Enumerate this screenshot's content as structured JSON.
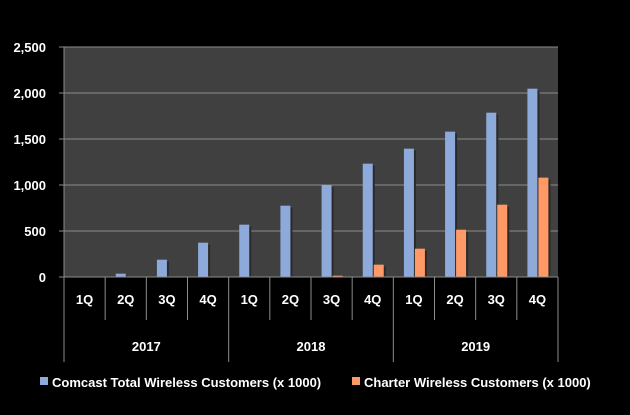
{
  "chart_data": {
    "type": "bar",
    "title": "",
    "xlabel": "",
    "ylabel": "",
    "ylim": [
      0,
      2500
    ],
    "yticks": [
      "0",
      "500",
      "1,000",
      "1,500",
      "2,000",
      "2,500"
    ],
    "grid": true,
    "legend_position": "bottom",
    "categories": [
      "1Q",
      "2Q",
      "3Q",
      "4Q",
      "1Q",
      "2Q",
      "3Q",
      "4Q",
      "1Q",
      "2Q",
      "3Q",
      "4Q"
    ],
    "groups": [
      {
        "label": "2017",
        "count": 4
      },
      {
        "label": "2018",
        "count": 4
      },
      {
        "label": "2019",
        "count": 4
      }
    ],
    "series": [
      {
        "name": "Comcast Total Wireless Customers (x 1000)",
        "color": "#8eaadb",
        "values": [
          0,
          36,
          188,
          373,
          569,
          775,
          1000,
          1232,
          1395,
          1580,
          1786,
          2047
        ]
      },
      {
        "name": "Charter Wireless Customers (x 1000)",
        "color": "#ff9966",
        "values": [
          0,
          0,
          0,
          0,
          0,
          0,
          14,
          134,
          308,
          514,
          786,
          1080
        ]
      }
    ],
    "colors": {
      "background": "#000000",
      "plot_area": "#404040",
      "gridline": "#8c8c8c"
    }
  }
}
